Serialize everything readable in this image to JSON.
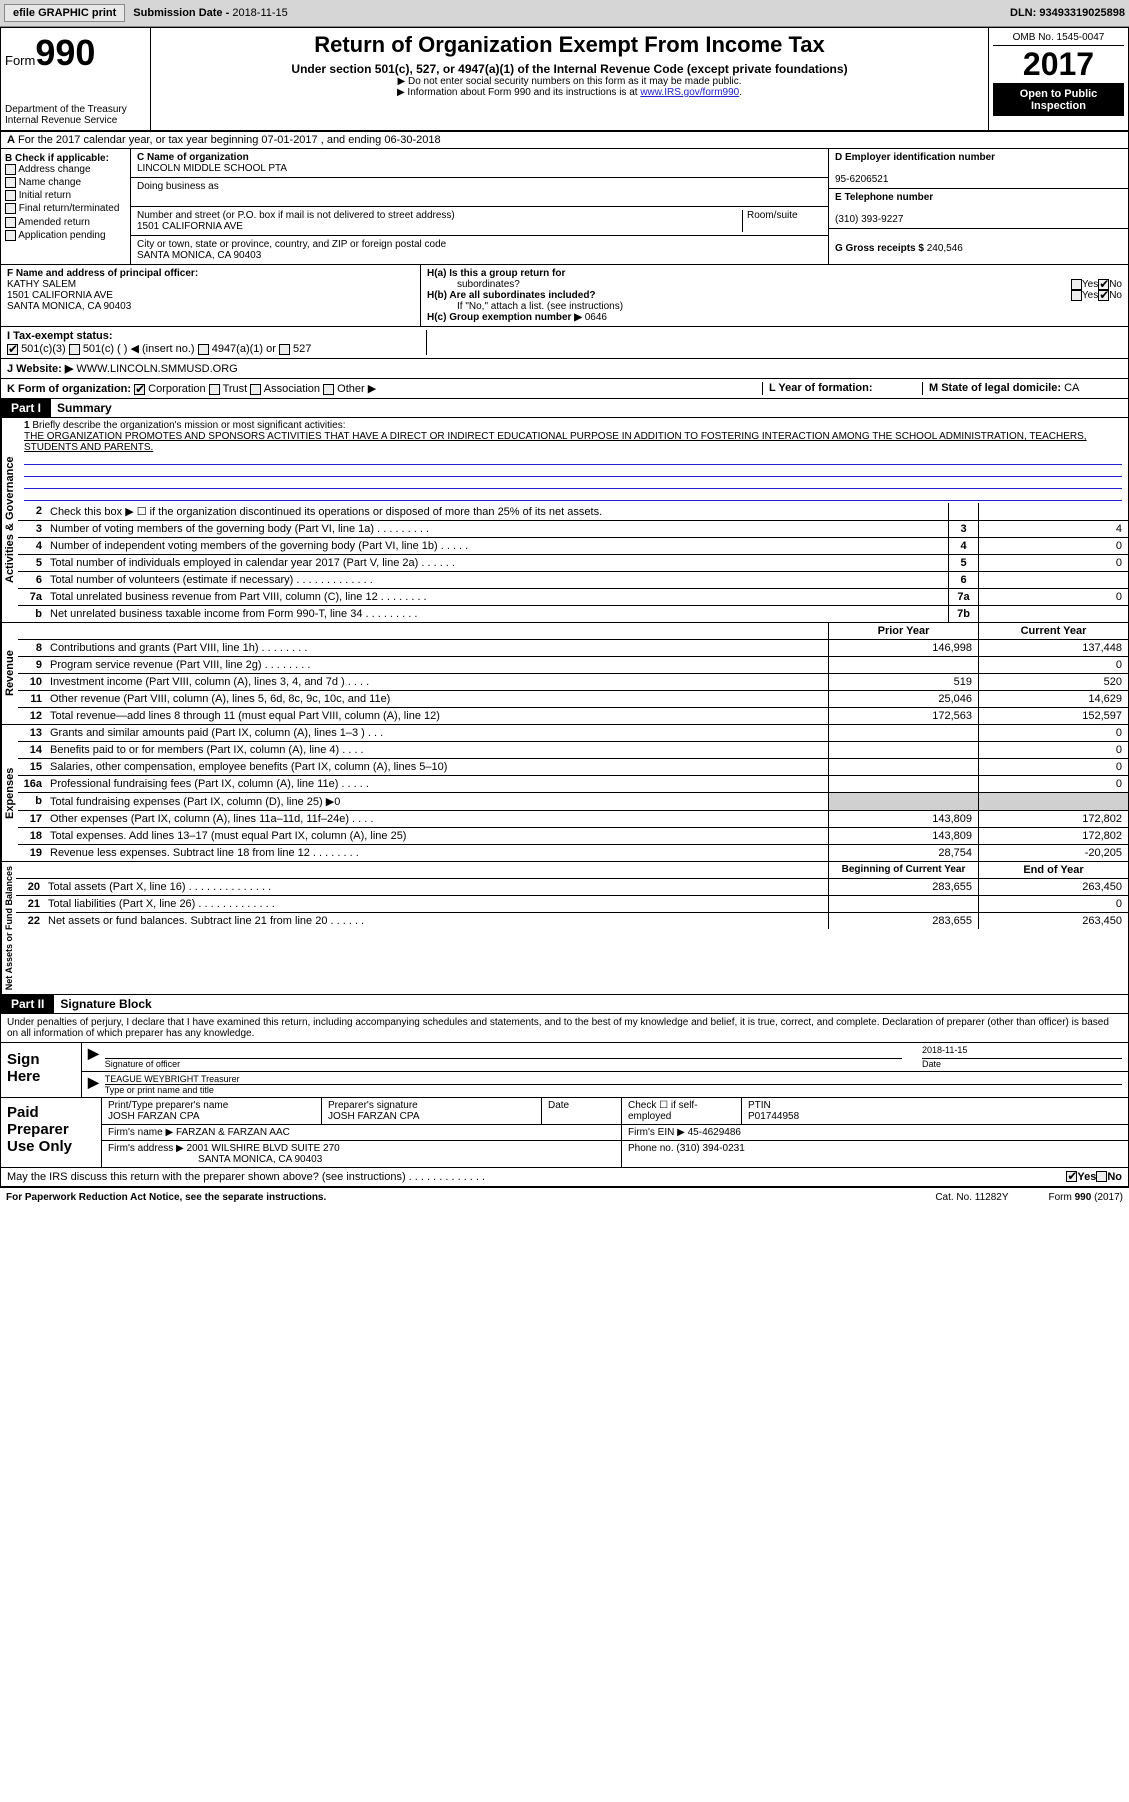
{
  "toolbar": {
    "efile": "efile GRAPHIC print",
    "submission_label": "Submission Date - ",
    "submission_date": "2018-11-15",
    "dln_label": "DLN: ",
    "dln": "93493319025898"
  },
  "header": {
    "form_label": "Form",
    "form_number": "990",
    "dept": "Department of the Treasury",
    "irs": "Internal Revenue Service",
    "title": "Return of Organization Exempt From Income Tax",
    "subtitle": "Under section 501(c), 527, or 4947(a)(1) of the Internal Revenue Code (except private foundations)",
    "note1": "▶ Do not enter social security numbers on this form as it may be made public.",
    "note2": "▶ Information about Form 990 and its instructions is at ",
    "note2_link": "www.IRS.gov/form990",
    "omb": "OMB No. 1545-0047",
    "year": "2017",
    "open": "Open to Public",
    "inspection": "Inspection"
  },
  "rowA": {
    "prefix": "A",
    "text": "For the 2017 calendar year, or tax year beginning 07-01-2017   , and ending 06-30-2018"
  },
  "B": {
    "label": "B Check if applicable:",
    "items": [
      "Address change",
      "Name change",
      "Initial return",
      "Final return/terminated",
      "Amended return",
      "Application pending"
    ]
  },
  "C": {
    "name_label": "C Name of organization",
    "name": "LINCOLN MIDDLE SCHOOL PTA",
    "dba_label": "Doing business as",
    "dba": "",
    "addr_label": "Number and street (or P.O. box if mail is not delivered to street address)",
    "room_label": "Room/suite",
    "addr": "1501 CALIFORNIA AVE",
    "city_label": "City or town, state or province, country, and ZIP or foreign postal code",
    "city": "SANTA MONICA, CA  90403"
  },
  "D": {
    "label": "D Employer identification number",
    "value": "95-6206521"
  },
  "E": {
    "label": "E Telephone number",
    "value": "(310) 393-9227"
  },
  "G": {
    "label": "G Gross receipts $ ",
    "value": "240,546"
  },
  "F": {
    "label": "F Name and address of principal officer:",
    "name": "KATHY SALEM",
    "addr1": "1501 CALIFORNIA AVE",
    "addr2": "SANTA MONICA, CA  90403"
  },
  "H": {
    "a_label": "H(a)  Is this a group return for",
    "a_label2": "subordinates?",
    "b_label": "H(b)  Are all subordinates included?",
    "b_note": "If \"No,\" attach a list. (see instructions)",
    "c_label": "H(c)  Group exemption number ▶",
    "c_value": "0646",
    "yes": "Yes",
    "no": "No"
  },
  "I": {
    "label": "I  Tax-exempt status:",
    "opt1": "501(c)(3)",
    "opt2": "501(c) (  ) ◀ (insert no.)",
    "opt3": "4947(a)(1) or",
    "opt4": "527"
  },
  "J": {
    "label": "J  Website: ▶",
    "value": "WWW.LINCOLN.SMMUSD.ORG"
  },
  "K": {
    "label": "K Form of organization:",
    "corp": "Corporation",
    "trust": "Trust",
    "assoc": "Association",
    "other": "Other ▶"
  },
  "L": {
    "label": "L Year of formation:",
    "value": ""
  },
  "M": {
    "label": "M State of legal domicile: ",
    "value": "CA"
  },
  "part1": {
    "hdr": "Part I",
    "title": "Summary",
    "line1_num": "1",
    "line1": "Briefly describe the organization's mission or most significant activities:",
    "mission": "THE ORGANIZATION PROMOTES AND SPONSORS ACTIVITIES THAT HAVE A DIRECT OR INDIRECT EDUCATIONAL PURPOSE IN ADDITION TO FOSTERING INTERACTION AMONG THE SCHOOL ADMINISTRATION, TEACHERS, STUDENTS AND PARENTS.",
    "side_ag": "Activities & Governance",
    "side_rev": "Revenue",
    "side_exp": "Expenses",
    "side_net": "Net Assets or Fund Balances",
    "prior_hdr": "Prior Year",
    "curr_hdr": "Current Year",
    "begin_hdr": "Beginning of Current Year",
    "end_hdr": "End of Year",
    "lines_ag": [
      {
        "n": "2",
        "t": "Check this box ▶ ☐  if the organization discontinued its operations or disposed of more than 25% of its net assets.",
        "box": "",
        "val": ""
      },
      {
        "n": "3",
        "t": "Number of voting members of the governing body (Part VI, line 1a)  .  .  .  .  .  .  .  .  .",
        "box": "3",
        "val": "4"
      },
      {
        "n": "4",
        "t": "Number of independent voting members of the governing body (Part VI, line 1b)  .  .  .  .  .",
        "box": "4",
        "val": "0"
      },
      {
        "n": "5",
        "t": "Total number of individuals employed in calendar year 2017 (Part V, line 2a)  .  .  .  .  .  .",
        "box": "5",
        "val": "0"
      },
      {
        "n": "6",
        "t": "Total number of volunteers (estimate if necessary)  .  .  .  .  .  .  .  .  .  .  .  .  .",
        "box": "6",
        "val": ""
      },
      {
        "n": "7a",
        "t": "Total unrelated business revenue from Part VIII, column (C), line 12  .  .  .  .  .  .  .  .",
        "box": "7a",
        "val": "0"
      },
      {
        "n": "b",
        "t": "Net unrelated business taxable income from Form 990-T, line 34  .  .  .  .  .  .  .  .  .",
        "box": "7b",
        "val": ""
      }
    ],
    "lines_rev": [
      {
        "n": "8",
        "t": "Contributions and grants (Part VIII, line 1h)  .  .  .  .  .  .  .  .",
        "p": "146,998",
        "c": "137,448"
      },
      {
        "n": "9",
        "t": "Program service revenue (Part VIII, line 2g)  .  .  .  .  .  .  .  .",
        "p": "",
        "c": "0"
      },
      {
        "n": "10",
        "t": "Investment income (Part VIII, column (A), lines 3, 4, and 7d )  .  .  .  .",
        "p": "519",
        "c": "520"
      },
      {
        "n": "11",
        "t": "Other revenue (Part VIII, column (A), lines 5, 6d, 8c, 9c, 10c, and 11e)",
        "p": "25,046",
        "c": "14,629"
      },
      {
        "n": "12",
        "t": "Total revenue—add lines 8 through 11 (must equal Part VIII, column (A), line 12)",
        "p": "172,563",
        "c": "152,597"
      }
    ],
    "lines_exp": [
      {
        "n": "13",
        "t": "Grants and similar amounts paid (Part IX, column (A), lines 1–3 )  .  .  .",
        "p": "",
        "c": "0"
      },
      {
        "n": "14",
        "t": "Benefits paid to or for members (Part IX, column (A), line 4)  .  .  .  .",
        "p": "",
        "c": "0"
      },
      {
        "n": "15",
        "t": "Salaries, other compensation, employee benefits (Part IX, column (A), lines 5–10)",
        "p": "",
        "c": "0"
      },
      {
        "n": "16a",
        "t": "Professional fundraising fees (Part IX, column (A), line 11e)  .  .  .  .  .",
        "p": "",
        "c": "0"
      },
      {
        "n": "b",
        "t": "Total fundraising expenses (Part IX, column (D), line 25) ▶0",
        "p": "shaded",
        "c": "shaded"
      },
      {
        "n": "17",
        "t": "Other expenses (Part IX, column (A), lines 11a–11d, 11f–24e)  .  .  .  .",
        "p": "143,809",
        "c": "172,802"
      },
      {
        "n": "18",
        "t": "Total expenses. Add lines 13–17 (must equal Part IX, column (A), line 25)",
        "p": "143,809",
        "c": "172,802"
      },
      {
        "n": "19",
        "t": "Revenue less expenses. Subtract line 18 from line 12 .  .  .  .  .  .  .  .",
        "p": "28,754",
        "c": "-20,205"
      }
    ],
    "lines_net": [
      {
        "n": "20",
        "t": "Total assets (Part X, line 16)  .  .  .  .  .  .  .  .  .  .  .  .  .  .",
        "p": "283,655",
        "c": "263,450"
      },
      {
        "n": "21",
        "t": "Total liabilities (Part X, line 26)  .  .  .  .  .  .  .  .  .  .  .  .  .",
        "p": "",
        "c": "0"
      },
      {
        "n": "22",
        "t": "Net assets or fund balances. Subtract line 21 from line 20  .  .  .  .  .  .",
        "p": "283,655",
        "c": "263,450"
      }
    ]
  },
  "part2": {
    "hdr": "Part II",
    "title": "Signature Block",
    "decl": "Under penalties of perjury, I declare that I have examined this return, including accompanying schedules and statements, and to the best of my knowledge and belief, it is true, correct, and complete. Declaration of preparer (other than officer) is based on all information of which preparer has any knowledge."
  },
  "sign": {
    "label": "Sign Here",
    "sig_officer": "Signature of officer",
    "date_label": "Date",
    "date": "2018-11-15",
    "name": "TEAGUE WEYBRIGHT Treasurer",
    "name_label": "Type or print name and title"
  },
  "paid": {
    "label": "Paid Preparer Use Only",
    "prep_name_label": "Print/Type preparer's name",
    "prep_name": "JOSH FARZAN CPA",
    "prep_sig_label": "Preparer's signature",
    "prep_sig": "JOSH FARZAN CPA",
    "date_label": "Date",
    "check_label": "Check ☐ if self-employed",
    "ptin_label": "PTIN",
    "ptin": "P01744958",
    "firm_name_label": "Firm's name    ▶ ",
    "firm_name": "FARZAN & FARZAN AAC",
    "firm_ein_label": "Firm's EIN ▶ ",
    "firm_ein": "45-4629486",
    "firm_addr_label": "Firm's address ▶ ",
    "firm_addr": "2001 WILSHIRE BLVD SUITE 270",
    "firm_city": "SANTA MONICA, CA  90403",
    "phone_label": "Phone no. ",
    "phone": "(310) 394-0231",
    "discuss": "May the IRS discuss this return with the preparer shown above? (see instructions)  .  .  .  .  .  .  .  .  .  .  .  .  .",
    "yes": "Yes",
    "no": "No"
  },
  "footer": {
    "paperwork": "For Paperwork Reduction Act Notice, see the separate instructions.",
    "cat": "Cat. No. 11282Y",
    "form": "Form 990 (2017)"
  }
}
